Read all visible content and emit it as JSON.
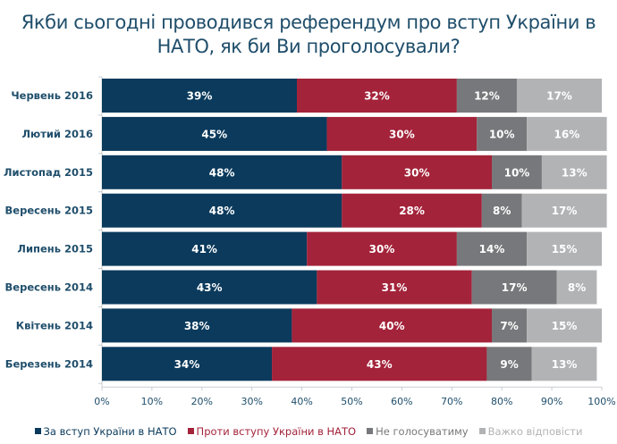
{
  "chart_data": {
    "type": "bar",
    "orientation": "horizontal",
    "stacked": true,
    "title": "Якби сьогодні проводився референдум про вступ України в НАТО, як би Ви проголосували?",
    "title_lines": [
      "Якби сьогодні проводився референдум про вступ України в",
      "НАТО, як би Ви проголосували?"
    ],
    "categories": [
      "Червень 2016",
      "Лютий 2016",
      "Листопад 2015",
      "Вересень 2015",
      "Липень 2015",
      "Вересень 2014",
      "Квітень 2014",
      "Березень 2014"
    ],
    "series": [
      {
        "name": "За вступ України в НАТО",
        "color": "#0b3a5c",
        "values": [
          39,
          45,
          48,
          48,
          41,
          43,
          38,
          34
        ]
      },
      {
        "name": "Проти вступу України в НАТО",
        "color": "#a3233a",
        "values": [
          32,
          30,
          30,
          28,
          30,
          31,
          40,
          43
        ]
      },
      {
        "name": "Не голосуватиму",
        "color": "#77787b",
        "values": [
          12,
          10,
          10,
          8,
          14,
          17,
          7,
          9
        ]
      },
      {
        "name": "Важко відповісти",
        "color": "#b2b3b5",
        "values": [
          17,
          16,
          13,
          17,
          15,
          8,
          15,
          13
        ]
      }
    ],
    "value_format": "{v}%",
    "xlabel": "",
    "ylabel": "",
    "xlim": [
      0,
      100
    ],
    "xticks": [
      "0%",
      "10%",
      "20%",
      "30%",
      "40%",
      "50%",
      "60%",
      "70%",
      "80%",
      "90%",
      "100%"
    ],
    "grid": false,
    "legend_position": "bottom"
  },
  "legend_text_colors": [
    "#0b3a5c",
    "#a3233a",
    "#77787b",
    "#b2b3b5"
  ]
}
